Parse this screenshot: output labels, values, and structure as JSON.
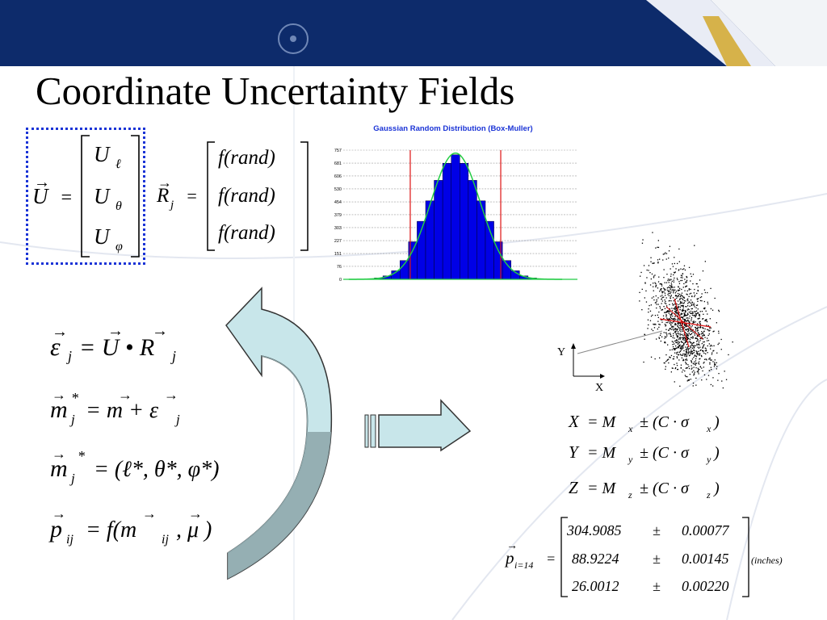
{
  "title": "Coordinate Uncertainty Fields",
  "vector_U": {
    "lhs": "U",
    "eq": "=",
    "components": [
      "U",
      "U",
      "U"
    ],
    "subscripts": [
      "ℓ",
      "θ",
      "φ"
    ]
  },
  "vector_R": {
    "lhs": "R",
    "sub": "j",
    "eq": "=",
    "rows": [
      "f(rand)",
      "f(rand)",
      "f(rand)"
    ]
  },
  "equations": {
    "eps": {
      "lhs": "ε",
      "sub": "j",
      "rhs": "= U • R",
      "rsub": "j"
    },
    "mstar": {
      "lhs": "m",
      "sup": "*",
      "sub": "j",
      "rhs": "= m + ε",
      "rsub": "j"
    },
    "mstar2": {
      "lhs": "m",
      "sup": "*",
      "sub": "j",
      "rhs": "= (ℓ*, θ*, φ*)"
    },
    "p": {
      "lhs": "p",
      "sub": "ij",
      "rhs": "= f(m",
      "rsub": "ij",
      "tail": ", μ )"
    }
  },
  "xyz": {
    "x": {
      "lhs": "X",
      "eq": "= M",
      "sub": "x",
      "rhs": "± (C · σ",
      "rsub": "x",
      "close": ")"
    },
    "y": {
      "lhs": "Y",
      "eq": "= M",
      "sub": "y",
      "rhs": "± (C · σ",
      "rsub": "y",
      "close": ")"
    },
    "z": {
      "lhs": "Z",
      "eq": "= M",
      "sub": "z",
      "rhs": "± (C · σ",
      "rsub": "z",
      "close": ")"
    }
  },
  "p_matrix": {
    "lhs": "p",
    "sub": "i=14",
    "eq": "=",
    "rows": [
      {
        "value": "304.9085",
        "pm": "±",
        "unc": "0.00077"
      },
      {
        "value": "88.9224",
        "pm": "±",
        "unc": "0.00145"
      },
      {
        "value": "26.0012",
        "pm": "±",
        "unc": "0.00220"
      }
    ],
    "units": "(inches)"
  },
  "scatter_axes": {
    "y": "Y",
    "x": "X"
  },
  "chart_data": {
    "type": "bar",
    "title": "Gaussian Random Distribution (Box-Muller)",
    "y_ticks": [
      "757",
      "681",
      "606",
      "530",
      "454",
      "379",
      "303",
      "227",
      "151",
      "76",
      "0"
    ],
    "ylim": [
      0,
      757
    ],
    "values": [
      3,
      8,
      20,
      50,
      110,
      220,
      340,
      460,
      580,
      680,
      730,
      680,
      580,
      460,
      340,
      220,
      110,
      50,
      20,
      8,
      3
    ],
    "fit_line": "gaussian",
    "colors": {
      "bars": "#0000e6",
      "curve": "#22cc44",
      "limits": "#dd1111",
      "title": "#1a33d6"
    }
  },
  "colors": {
    "banner": "#0d2b6b",
    "dotted_box": "#1a33d6",
    "arrow_fill": "#c8e6ea",
    "arrow_stroke": "#333333"
  }
}
